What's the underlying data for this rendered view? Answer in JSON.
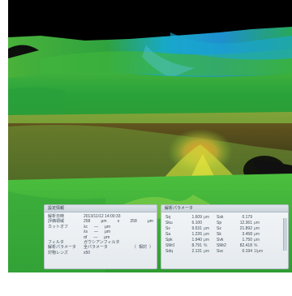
{
  "settings_panel": {
    "title": "設定情報",
    "rows": [
      {
        "label": "解析日時",
        "values": [
          "2013/11/12 14:00:33"
        ]
      },
      {
        "label": "評価領域",
        "values": [
          "258",
          "μm",
          "x",
          "258",
          "μm"
        ]
      },
      {
        "label": "カットオフ",
        "values": [
          "λc",
          "—",
          "μm"
        ]
      },
      {
        "label": "",
        "values": [
          "λs",
          "—",
          "μm"
        ]
      },
      {
        "label": "",
        "values": [
          "αf",
          "—",
          "μm"
        ]
      },
      {
        "label": "フィルタ",
        "values": [
          "ガウシアンフィルタ"
        ]
      },
      {
        "label": "解析パラメータ",
        "values": [
          "全パラメータ",
          "（",
          "相対",
          "）"
        ]
      },
      {
        "label": "対物レンズ",
        "values": [
          "x50"
        ]
      }
    ]
  },
  "params_panel": {
    "title": "解析パラメータ",
    "rows": [
      {
        "n1": "Sq",
        "v1": "1.609",
        "u1": "μm",
        "n2": "Ssk",
        "v2": "0.179",
        "u2": ""
      },
      {
        "n1": "Sku",
        "v1": "6.100",
        "u1": "",
        "n2": "Sp",
        "v2": "12.361",
        "u2": "μm"
      },
      {
        "n1": "Sv",
        "v1": "9.531",
        "u1": "μm",
        "n2": "Sz",
        "v2": "21.892",
        "u2": "μm"
      },
      {
        "n1": "Sa",
        "v1": "1.226",
        "u1": "μm",
        "n2": "Sk",
        "v2": "3.458",
        "u2": "μm"
      },
      {
        "n1": "Spk",
        "v1": "1.940",
        "u1": "μm",
        "n2": "Svk",
        "v2": "1.750",
        "u2": "μm"
      },
      {
        "n1": "SMr1",
        "v1": "8.791",
        "u1": "%",
        "n2": "SMr2",
        "v2": "82.418",
        "u2": "%"
      },
      {
        "n1": "Sdq",
        "v1": "2.131",
        "u1": "μm",
        "n2": "Ssc",
        "v2": "0.194",
        "u2": "1/μm"
      }
    ]
  },
  "colors": {
    "background": "#000000",
    "surface_low": "#2f9a35",
    "surface_mid": "#8ccd2f",
    "surface_peak": "#e0842a",
    "surface_far": "#19a9cf",
    "panel": "#eef2f5"
  }
}
